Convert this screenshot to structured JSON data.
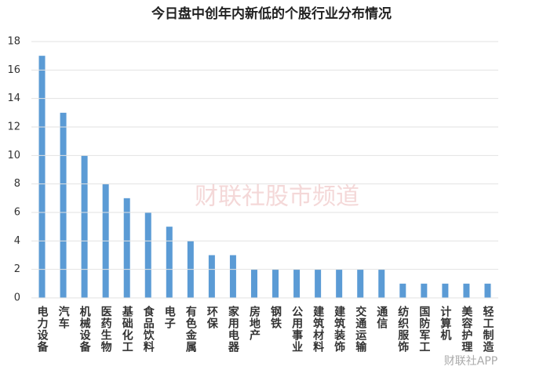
{
  "chart_data": {
    "type": "bar",
    "title": "今日盘中创年内新低的个股行业分布情况",
    "categories": [
      "电力设备",
      "汽车",
      "机械设备",
      "医药生物",
      "基础化工",
      "食品饮料",
      "电子",
      "有色金属",
      "环保",
      "家用电器",
      "房地产",
      "钢铁",
      "公用事业",
      "建筑材料",
      "建筑装饰",
      "交通运输",
      "通信",
      "纺织服饰",
      "国防军工",
      "计算机",
      "美容护理",
      "轻工制造"
    ],
    "values": [
      17,
      13,
      10,
      8,
      7,
      6,
      5,
      4,
      3,
      3,
      2,
      2,
      2,
      2,
      2,
      2,
      2,
      1,
      1,
      1,
      1,
      1
    ],
    "color": "#5b9bd5",
    "ylim": [
      0,
      18
    ],
    "yticks": [
      0,
      2,
      4,
      6,
      8,
      10,
      12,
      14,
      16,
      18
    ],
    "grid": true,
    "watermark": "财联社股市频道",
    "source": "财联社APP"
  }
}
